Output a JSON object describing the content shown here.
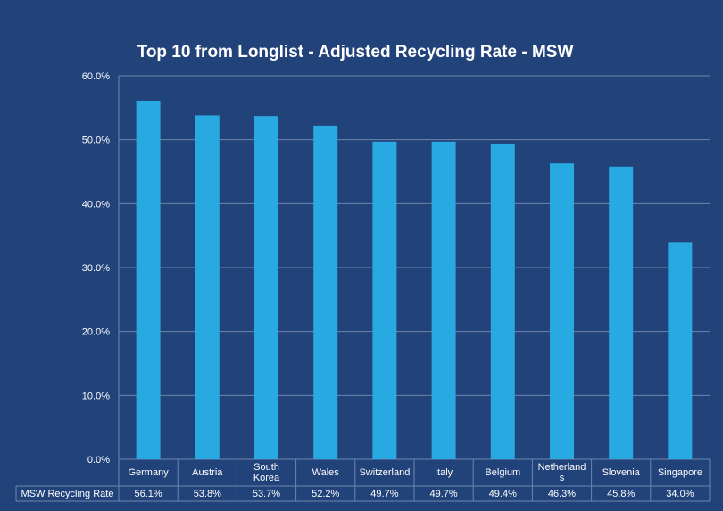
{
  "chart_data": {
    "type": "bar",
    "title": "Top 10 from Longlist - Adjusted Recycling Rate - MSW",
    "categories": [
      "Germany",
      "Austria",
      "South Korea",
      "Wales",
      "Switzerland",
      "Italy",
      "Belgium",
      "Netherlands",
      "Slovenia",
      "Singapore"
    ],
    "category_labels": [
      [
        "Germany"
      ],
      [
        "Austria"
      ],
      [
        "South",
        "Korea"
      ],
      [
        "Wales"
      ],
      [
        "Switzerland"
      ],
      [
        "Italy"
      ],
      [
        "Belgium"
      ],
      [
        "Netherland",
        "s"
      ],
      [
        "Slovenia"
      ],
      [
        "Singapore"
      ]
    ],
    "series": [
      {
        "name": "MSW Recycling Rate",
        "values": [
          56.1,
          53.8,
          53.7,
          52.2,
          49.7,
          49.7,
          49.4,
          46.3,
          45.8,
          34.0
        ]
      }
    ],
    "value_labels": [
      "56.1%",
      "53.8%",
      "53.7%",
      "52.2%",
      "49.7%",
      "49.7%",
      "49.4%",
      "46.3%",
      "45.8%",
      "34.0%"
    ],
    "ylim": [
      0,
      60
    ],
    "yticks": [
      "0.0%",
      "10.0%",
      "20.0%",
      "30.0%",
      "40.0%",
      "50.0%",
      "60.0%"
    ],
    "grid": true,
    "legend": "data table below chart",
    "colors": {
      "background": "#22427a",
      "bar": "#29a9e1",
      "grid": "#6f86ad",
      "text": "#ffffff"
    }
  }
}
